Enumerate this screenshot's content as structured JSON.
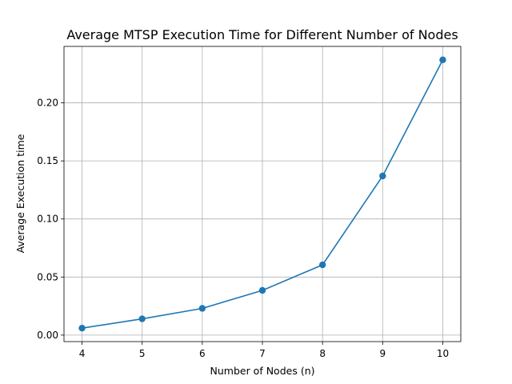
{
  "chart_data": {
    "type": "line",
    "title": "Average MTSP Execution Time for Different Number of Nodes",
    "xlabel": "Number of Nodes (n)",
    "ylabel": "Average Execution time",
    "x": [
      4,
      5,
      6,
      7,
      8,
      9,
      10
    ],
    "series": [
      {
        "values": [
          0.006,
          0.014,
          0.023,
          0.0385,
          0.0605,
          0.137,
          0.237
        ]
      }
    ],
    "xticks": [
      "4",
      "5",
      "6",
      "7",
      "8",
      "9",
      "10"
    ],
    "yticks": [
      "0.00",
      "0.05",
      "0.10",
      "0.15",
      "0.20"
    ],
    "xlim": [
      3.7,
      10.3
    ],
    "ylim": [
      -0.0056,
      0.2486
    ],
    "grid": true,
    "colors": {
      "series": "#1f77b4",
      "grid": "#b0b0b0"
    },
    "marker": "circle"
  }
}
